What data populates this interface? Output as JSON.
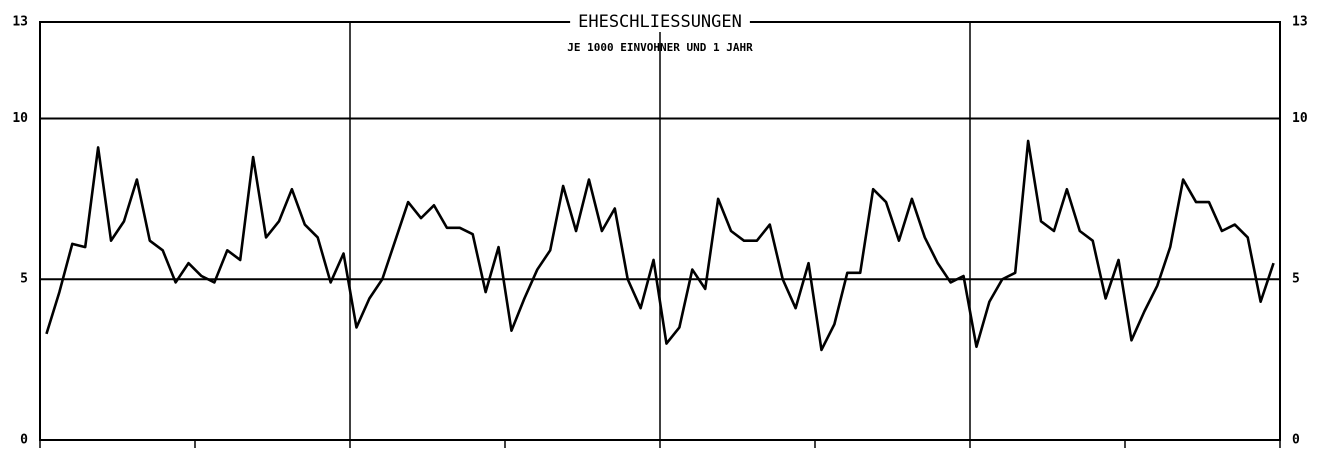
{
  "chart_data": {
    "type": "line",
    "title": "EHESCHLIESSUNGEN",
    "subtitle": "JE 1000 EINVOHNER UND 1 JAHR",
    "categories": [
      null,
      null,
      null,
      null,
      null,
      null,
      null,
      null,
      null,
      null,
      null,
      null,
      null,
      null,
      null,
      null,
      null,
      null,
      null,
      null,
      null,
      null,
      null,
      null,
      null,
      null,
      null,
      null,
      null,
      null,
      null,
      null,
      null,
      null,
      null,
      null,
      null,
      null,
      null,
      null,
      null,
      null,
      null,
      null,
      null,
      null,
      null,
      null,
      null,
      null,
      null,
      null,
      null,
      null,
      null,
      null,
      null,
      null,
      null,
      null,
      null,
      null,
      null,
      null,
      null,
      null,
      null,
      null,
      null,
      null,
      null,
      null,
      null,
      null,
      null,
      null,
      null,
      null,
      null,
      null,
      null,
      null,
      null,
      null,
      null,
      null,
      null,
      null,
      null,
      null,
      null,
      null,
      null,
      null,
      null,
      null
    ],
    "series": [
      {
        "name": null,
        "color": "#000000",
        "values": [
          3.3,
          4.6,
          6.1,
          6.0,
          9.1,
          6.2,
          6.8,
          8.1,
          6.2,
          5.9,
          4.9,
          5.5,
          5.1,
          4.9,
          5.9,
          5.6,
          8.8,
          6.3,
          6.8,
          7.8,
          6.7,
          6.3,
          4.9,
          5.8,
          3.5,
          4.4,
          5.0,
          6.2,
          7.4,
          6.9,
          7.3,
          6.6,
          6.6,
          6.4,
          4.6,
          6.0,
          3.4,
          4.4,
          5.3,
          5.9,
          7.9,
          6.5,
          8.1,
          6.5,
          7.2,
          5.0,
          4.1,
          5.6,
          3.0,
          3.5,
          5.3,
          4.7,
          7.5,
          6.5,
          6.2,
          6.2,
          6.7,
          5.0,
          4.1,
          5.5,
          2.8,
          3.6,
          5.2,
          5.2,
          7.8,
          7.4,
          6.2,
          7.5,
          6.3,
          5.5,
          4.9,
          5.1,
          2.9,
          4.3,
          5.0,
          5.2,
          9.3,
          6.8,
          6.5,
          7.8,
          6.5,
          6.2,
          4.4,
          5.6,
          3.1,
          4.0,
          4.8,
          6.0,
          8.1,
          7.4,
          7.4,
          6.5,
          6.7,
          6.3,
          4.3,
          5.5
        ]
      }
    ],
    "ylim": [
      0,
      13
    ],
    "yticks": [
      0,
      5,
      10,
      13
    ],
    "grid": true
  }
}
